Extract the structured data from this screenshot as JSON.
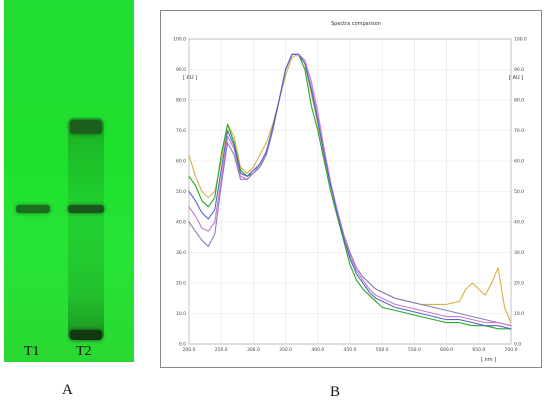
{
  "panel_a": {
    "lanes": [
      {
        "label": "T1"
      },
      {
        "label": "T2"
      }
    ],
    "caption": "A",
    "background_color": "#22dd33"
  },
  "panel_b": {
    "caption": "B"
  },
  "chart_data": {
    "type": "line",
    "title": "Spectra comparison",
    "xlabel": "[ nm ]",
    "ylabel": "[ AU ]",
    "y2label": "[ AU ]",
    "xlim": [
      200,
      700
    ],
    "ylim": [
      0,
      100
    ],
    "x_ticks": [
      "200.0",
      "250.0",
      "300.0",
      "350.0",
      "400.0",
      "450.0",
      "500.0",
      "550.0",
      "600.0",
      "650.0",
      "700.0"
    ],
    "y_ticks": [
      "0.0",
      "10.0",
      "20.0",
      "30.0",
      "40.0",
      "50.0",
      "60.0",
      "70.0",
      "80.0",
      "90.0",
      "100.0"
    ],
    "grid": true,
    "series": [
      {
        "color": "#d4b04a",
        "x": [
          200,
          210,
          220,
          230,
          240,
          250,
          260,
          270,
          280,
          290,
          300,
          310,
          320,
          330,
          340,
          350,
          360,
          370,
          380,
          390,
          400,
          410,
          420,
          430,
          440,
          450,
          460,
          470,
          480,
          490,
          500,
          520,
          540,
          560,
          580,
          600,
          620,
          630,
          640,
          650,
          660,
          670,
          680,
          690,
          700
        ],
        "y": [
          62,
          55,
          50,
          48,
          50,
          60,
          72,
          68,
          58,
          56,
          58,
          62,
          66,
          72,
          80,
          88,
          94,
          95,
          92,
          82,
          72,
          62,
          52,
          44,
          36,
          30,
          25,
          22,
          20,
          18,
          17,
          15,
          14,
          13,
          13,
          13,
          14,
          18,
          20,
          18,
          16,
          20,
          25,
          12,
          7
        ]
      },
      {
        "color": "#22aa22",
        "x": [
          200,
          210,
          220,
          230,
          240,
          250,
          260,
          270,
          280,
          290,
          300,
          310,
          320,
          330,
          340,
          350,
          360,
          370,
          380,
          390,
          400,
          410,
          420,
          430,
          440,
          450,
          460,
          470,
          480,
          490,
          500,
          520,
          540,
          560,
          580,
          600,
          620,
          640,
          660,
          680,
          700
        ],
        "y": [
          55,
          52,
          47,
          45,
          48,
          62,
          72,
          66,
          57,
          55,
          56,
          58,
          62,
          70,
          80,
          90,
          95,
          95,
          90,
          78,
          70,
          60,
          50,
          42,
          34,
          26,
          21,
          18,
          16,
          14,
          12,
          11,
          10,
          9,
          8,
          7,
          7,
          6,
          6,
          5,
          5
        ]
      },
      {
        "color": "#8a7cc0",
        "x": [
          200,
          210,
          220,
          230,
          240,
          250,
          260,
          270,
          280,
          290,
          300,
          310,
          320,
          330,
          340,
          350,
          360,
          370,
          380,
          390,
          400,
          410,
          420,
          430,
          440,
          450,
          460,
          470,
          480,
          490,
          500,
          520,
          540,
          560,
          580,
          600,
          620,
          640,
          660,
          680,
          700
        ],
        "y": [
          40,
          37,
          34,
          32,
          36,
          52,
          66,
          62,
          54,
          54,
          56,
          58,
          62,
          70,
          80,
          90,
          95,
          95,
          92,
          84,
          74,
          62,
          52,
          44,
          36,
          30,
          25,
          22,
          20,
          18,
          17,
          15,
          14,
          13,
          12,
          11,
          10,
          9,
          8,
          7,
          6
        ]
      },
      {
        "color": "#cc77cc",
        "x": [
          200,
          210,
          220,
          230,
          240,
          250,
          260,
          270,
          280,
          290,
          300,
          310,
          320,
          330,
          340,
          350,
          360,
          370,
          380,
          390,
          400,
          410,
          420,
          430,
          440,
          450,
          460,
          470,
          480,
          490,
          500,
          520,
          540,
          560,
          580,
          600,
          620,
          640,
          660,
          680,
          700
        ],
        "y": [
          45,
          42,
          38,
          37,
          40,
          54,
          68,
          64,
          55,
          54,
          56,
          59,
          63,
          71,
          80,
          90,
          95,
          95,
          93,
          86,
          76,
          64,
          53,
          44,
          36,
          29,
          24,
          21,
          18,
          16,
          15,
          13,
          12,
          11,
          10,
          9,
          9,
          8,
          7,
          7,
          6
        ]
      },
      {
        "color": "#5566cc",
        "x": [
          200,
          210,
          220,
          230,
          240,
          250,
          260,
          270,
          280,
          290,
          300,
          310,
          320,
          330,
          340,
          350,
          360,
          370,
          380,
          390,
          400,
          410,
          420,
          430,
          440,
          450,
          460,
          470,
          480,
          490,
          500,
          520,
          540,
          560,
          580,
          600,
          620,
          640,
          660,
          680,
          700
        ],
        "y": [
          50,
          47,
          43,
          41,
          44,
          57,
          70,
          65,
          56,
          55,
          57,
          59,
          63,
          71,
          80,
          90,
          95,
          95,
          92,
          83,
          73,
          62,
          52,
          43,
          35,
          28,
          23,
          20,
          17,
          15,
          14,
          12,
          11,
          10,
          9,
          8,
          8,
          7,
          6,
          6,
          5
        ]
      }
    ]
  }
}
